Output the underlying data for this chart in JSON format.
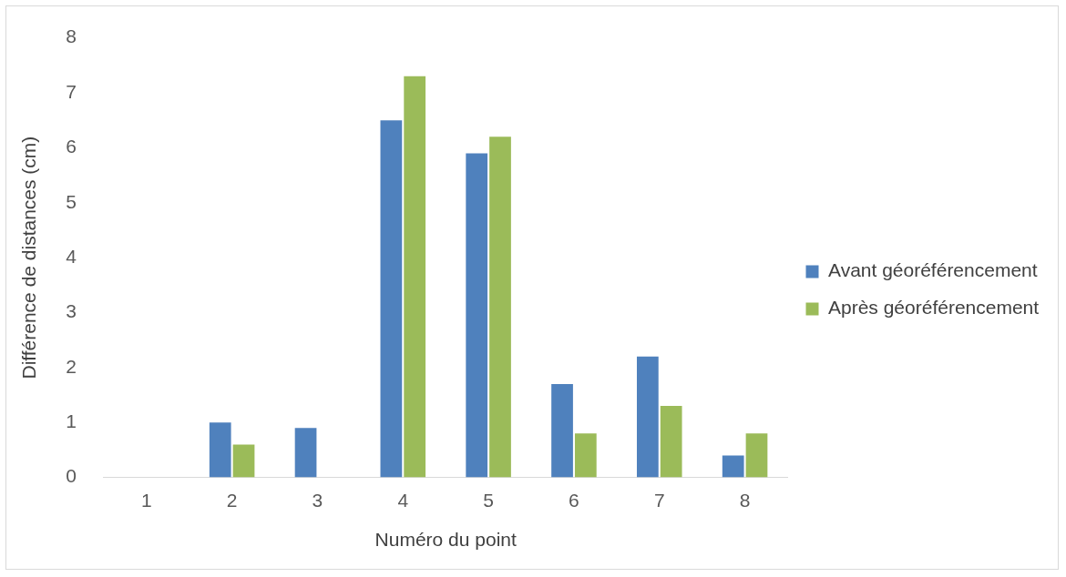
{
  "chart_data": {
    "type": "bar",
    "xlabel": "Numéro du point",
    "ylabel": "Différence de distances (cm)",
    "categories": [
      "1",
      "2",
      "3",
      "4",
      "5",
      "6",
      "7",
      "8"
    ],
    "series": [
      {
        "name": "Avant géoréférencement",
        "color": "#4f81bd",
        "values": [
          0,
          1.0,
          0.9,
          6.5,
          5.9,
          1.7,
          2.2,
          0.4
        ]
      },
      {
        "name": "Après géoréférencement",
        "color": "#9bbb59",
        "values": [
          0,
          0.6,
          0,
          7.3,
          6.2,
          0.8,
          1.3,
          0.8
        ]
      }
    ],
    "ylim": [
      0,
      8
    ],
    "yticks": [
      0,
      1,
      2,
      3,
      4,
      5,
      6,
      7,
      8
    ],
    "grid": false,
    "legend": "right"
  }
}
